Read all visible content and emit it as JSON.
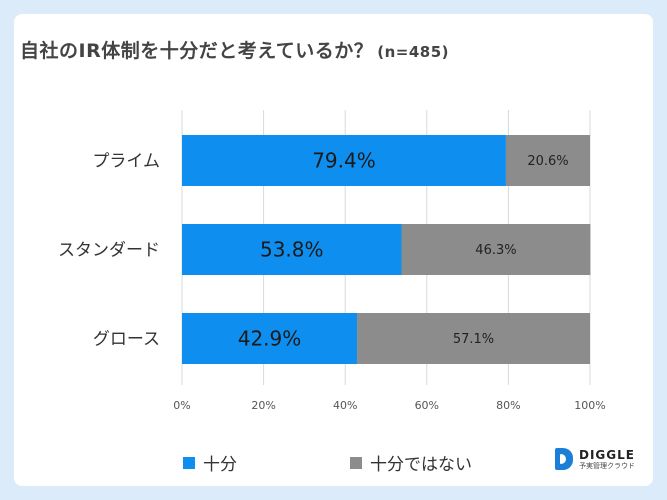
{
  "title": "自社のIR体制を十分だと考えているか？",
  "sample": "(n=485)",
  "chart_data": {
    "type": "bar",
    "orientation": "horizontal",
    "stacked": true,
    "categories": [
      "プライム",
      "スタンダード",
      "グロース"
    ],
    "series": [
      {
        "name": "十分",
        "values": [
          79.4,
          53.8,
          42.9
        ],
        "labels": [
          "79.4%",
          "53.8%",
          "42.9%"
        ],
        "color": "#0e8ff0"
      },
      {
        "name": "十分ではない",
        "values": [
          20.6,
          46.3,
          57.1
        ],
        "labels": [
          "20.6%",
          "46.3%",
          "57.1%"
        ],
        "color": "#8c8c8c"
      }
    ],
    "xlim": [
      0,
      100
    ],
    "xticks": [
      0,
      20,
      40,
      60,
      80,
      100
    ],
    "xtick_labels": [
      "0%",
      "20%",
      "40%",
      "60%",
      "80%",
      "100%"
    ],
    "grid": "vertical",
    "legend": "bottom"
  },
  "logo": {
    "name": "DIGGLE",
    "tagline": "予実管理クラウド"
  }
}
